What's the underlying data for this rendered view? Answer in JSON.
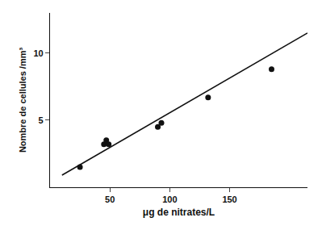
{
  "chart_data": {
    "type": "scatter",
    "xlabel": "μg de nitrates/L",
    "ylabel": "Nombre de cellules /mm³",
    "series": [
      {
        "type": "scatter",
        "marker": "circle",
        "color": "#111111",
        "x": [
          25,
          45,
          47,
          49,
          90,
          93,
          132,
          185
        ],
        "values": [
          1.5,
          3.2,
          3.5,
          3.2,
          4.5,
          4.8,
          6.7,
          8.8
        ]
      },
      {
        "type": "line",
        "line_style": "solid",
        "color": "#111111",
        "x": [
          10,
          215
        ],
        "values": [
          0.9,
          11.5
        ]
      }
    ],
    "xlim": [
      0,
      215
    ],
    "xticks": [
      50,
      100,
      150
    ],
    "ylim": [
      0,
      13
    ],
    "yticks": [
      5,
      10
    ],
    "grid": false
  }
}
